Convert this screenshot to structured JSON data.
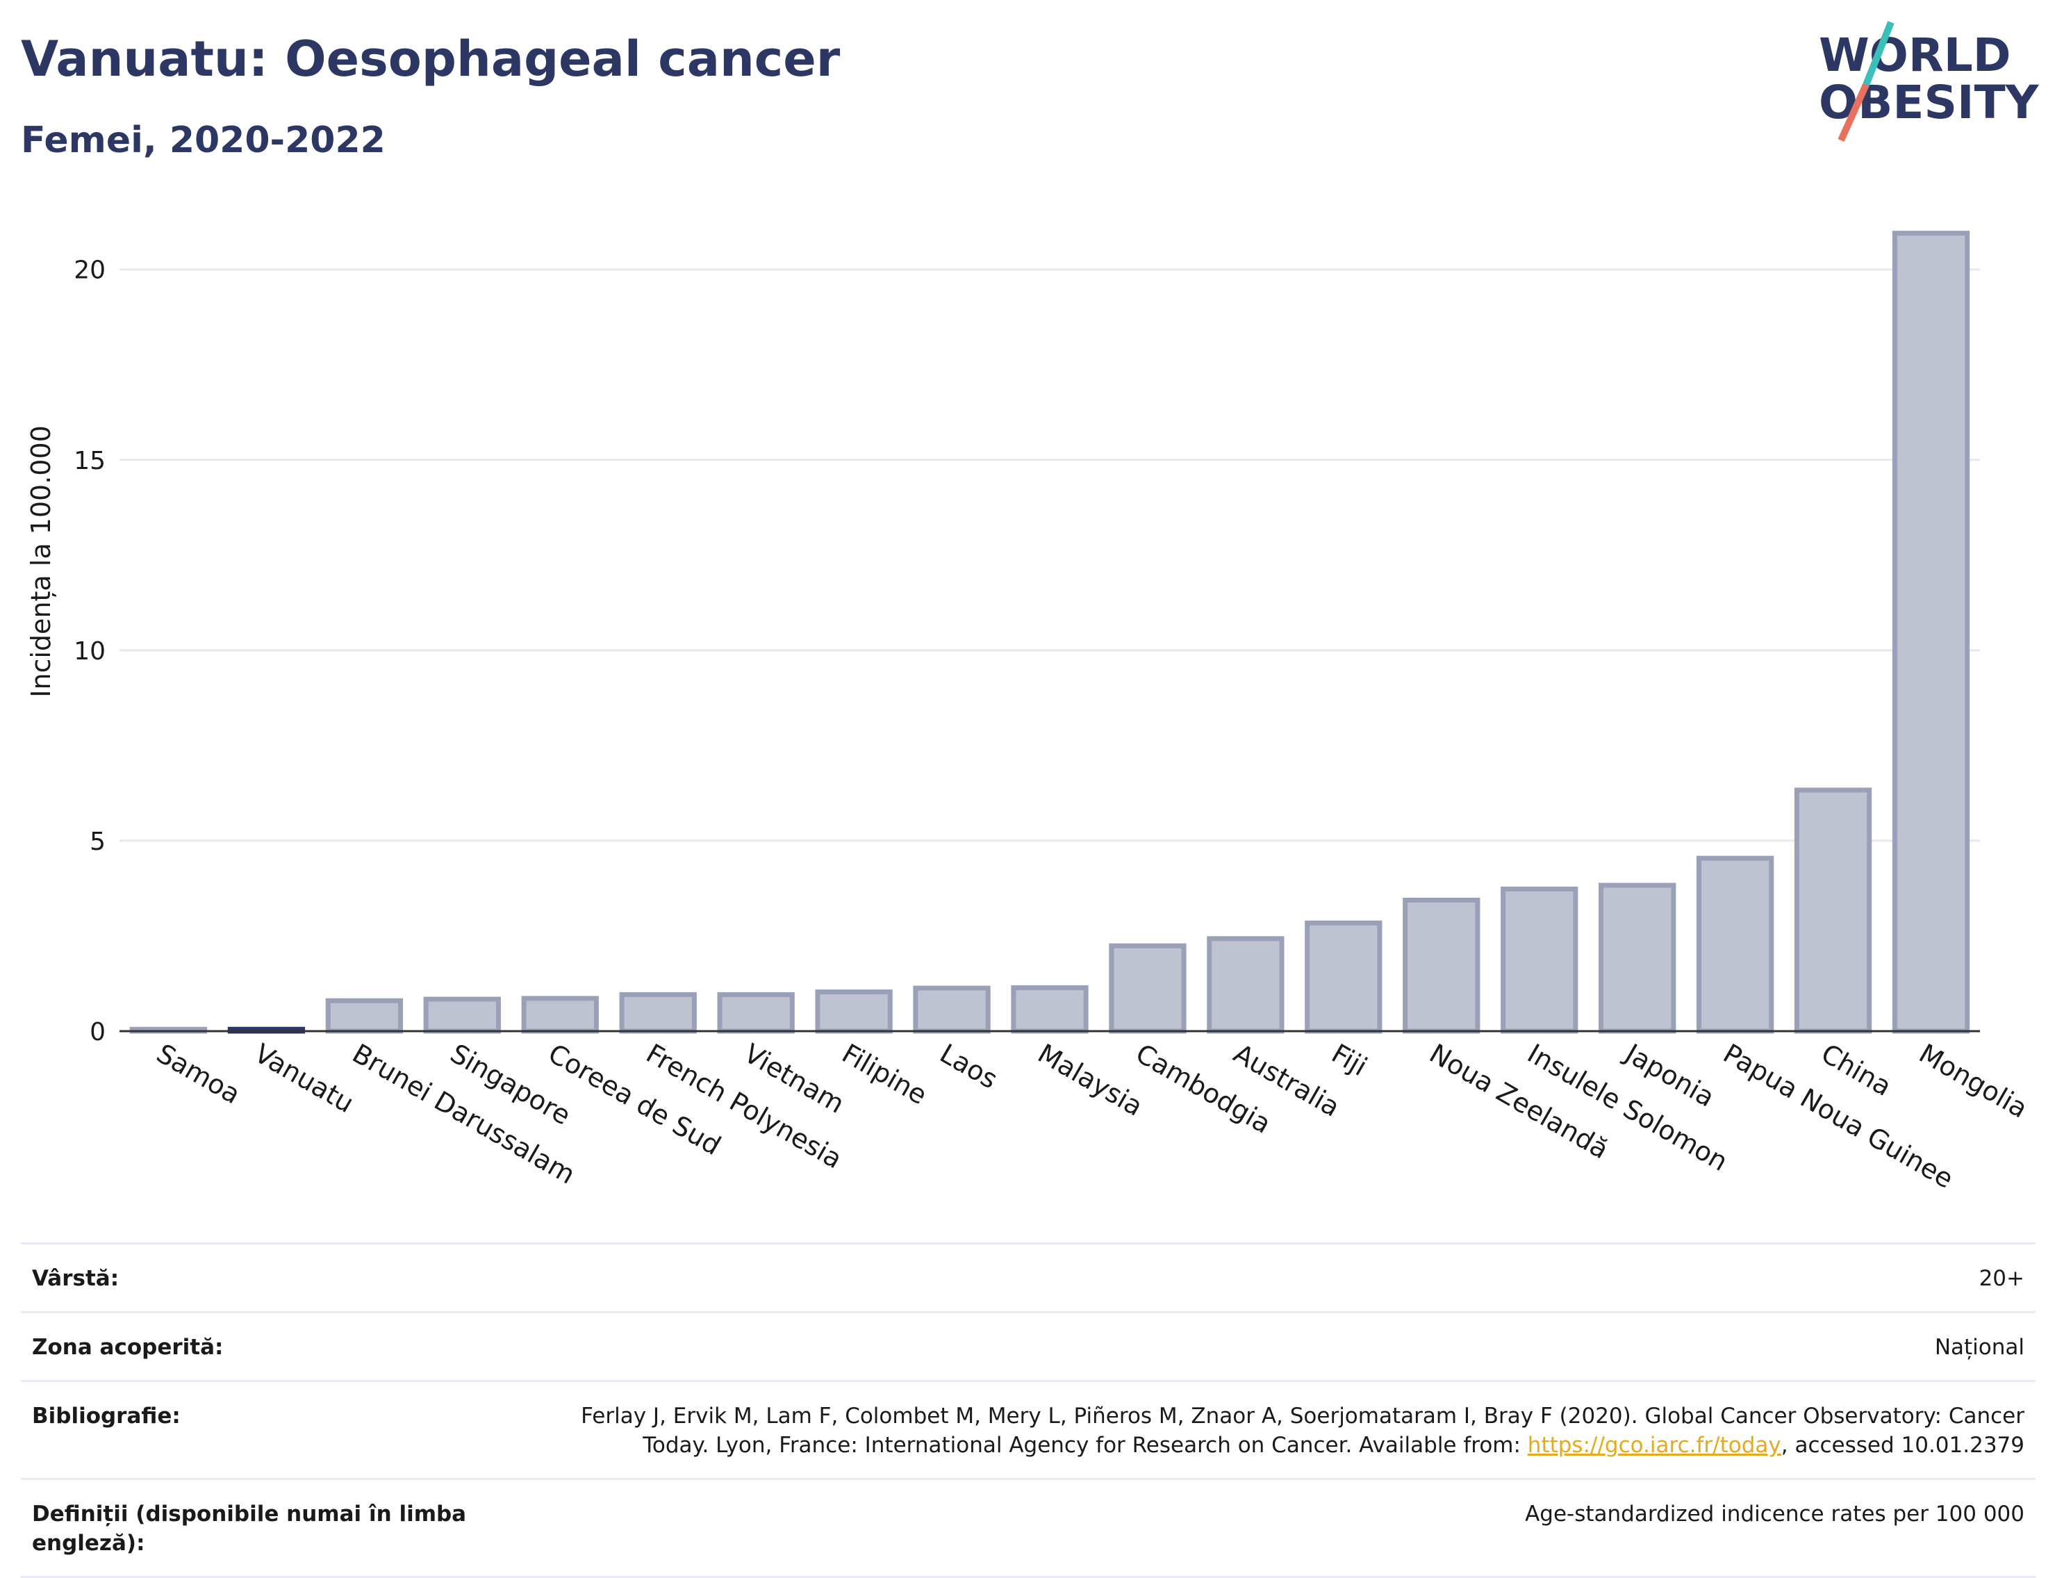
{
  "header": {
    "title": "Vanuatu: Oesophageal cancer",
    "subtitle": "Femei, 2020-2022"
  },
  "logo": {
    "line1": "WORLD",
    "line2": "OBESITY",
    "colors": {
      "text": "#2d3764",
      "slash_top": "#3bbfb8",
      "slash_bottom": "#e8705e"
    }
  },
  "chart_data": {
    "type": "bar",
    "categories": [
      "Samoa",
      "Vanuatu",
      "Brunei Darussalam",
      "Singapore",
      "Coreea de Sud",
      "French Polynesia",
      "Vietnam",
      "Filipine",
      "Laos",
      "Malaysia",
      "Cambodgia",
      "Australia",
      "Fiji",
      "Noua Zeelandă",
      "Insulele Solomon",
      "Japonia",
      "Papua Noua Guinee",
      "China",
      "Mongolia"
    ],
    "values": [
      0.05,
      0.05,
      0.8,
      0.84,
      0.86,
      0.96,
      0.96,
      1.03,
      1.13,
      1.14,
      2.24,
      2.43,
      2.84,
      3.44,
      3.73,
      3.83,
      4.54,
      6.33,
      20.95
    ],
    "highlight": "Vanuatu",
    "ylabel": "Incidența la 100.000",
    "xlabel": "",
    "ylim": [
      0,
      21.6
    ],
    "yticks": [
      0,
      5,
      10,
      15,
      20
    ],
    "grid": true,
    "colors": {
      "bar_fill": "#bfc3d1",
      "bar_stroke": "#99a0b7",
      "highlight": "#2d3764",
      "grid": "#e6e8ee",
      "axis": "#333333"
    }
  },
  "info": [
    {
      "label": "Vârstă:",
      "value": "20+"
    },
    {
      "label": "Zona acoperită:",
      "value": "Național"
    },
    {
      "label": "Bibliografie:",
      "value_pre": "Ferlay J, Ervik M, Lam F, Colombet M, Mery L, Piñeros M, Znaor A, Soerjomataram I, Bray F (2020). Global Cancer Observatory: Cancer Today. Lyon, France: International Agency for Research on Cancer. Available from: ",
      "link": "https://gco.iarc.fr/today",
      "value_post": ", accessed 10.01.2379"
    },
    {
      "label": "Definiții (disponibile numai în limba engleză):",
      "value": "Age-standardized indicence rates per 100 000"
    }
  ]
}
